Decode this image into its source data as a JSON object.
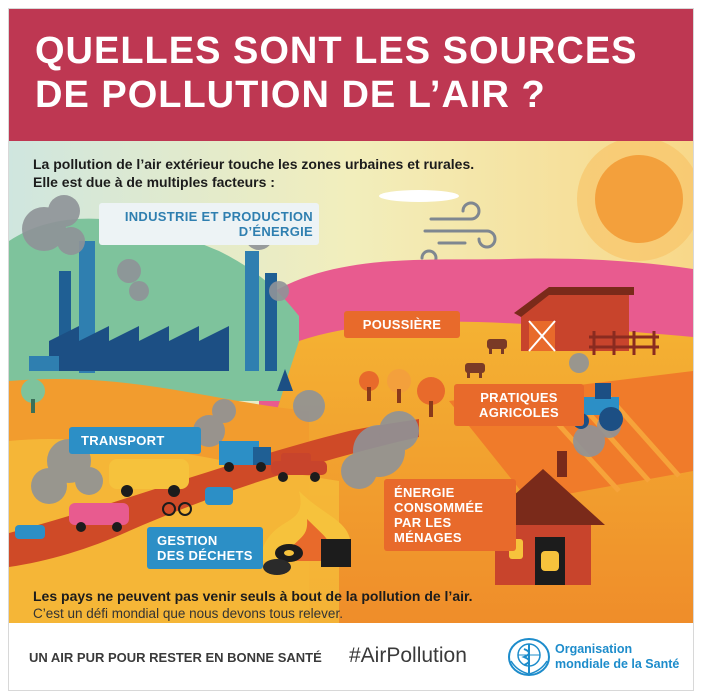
{
  "header": {
    "title_line1": "QUELLES SONT LES SOURCES",
    "title_line2": "DE POLLUTION DE L’AIR ?"
  },
  "intro": {
    "line1": "La pollution de l’air extérieur touche les zones urbaines et rurales.",
    "line2": "Elle est due à de multiples facteurs :"
  },
  "labels": {
    "industry_line1": "INDUSTRIE ET PRODUCTION",
    "industry_line2": "D’ÉNERGIE",
    "dust": "POUSSIÈRE",
    "agri_line1": "PRATIQUES",
    "agri_line2": "AGRICOLES",
    "transport": "TRANSPORT",
    "waste_line1": "GESTION",
    "waste_line2": "DES DÉCHETS",
    "energy_line1": "ÉNERGIE",
    "energy_line2": "CONSOMMÉE",
    "energy_line3": "PAR LES",
    "energy_line4": "MÉNAGES"
  },
  "footer_message": {
    "bold": "Les pays ne peuvent pas venir seuls à bout de la pollution de l’air.",
    "normal": "C’est un défi mondial que nous devons tous relever."
  },
  "bottom_bar": {
    "slogan": "UN AIR PUR POUR RESTER EN BONNE SANTÉ",
    "hashtag": "#AirPollution",
    "org_line1": "Organisation",
    "org_line2": "mondiale de la Santé"
  },
  "colors": {
    "header": "#be3752",
    "orange_label": "#e86a2b",
    "blue_label": "#2c8fc6",
    "who_blue": "#1d8ccb"
  },
  "icons": [
    "factory-icon",
    "smoke-icon",
    "sun-icon",
    "wind-icon",
    "barn-icon",
    "cow-icon",
    "tractor-icon",
    "truck-icon",
    "car-icon",
    "fire-icon",
    "house-icon",
    "lantern-icon",
    "tree-icon",
    "who-logo-icon"
  ]
}
